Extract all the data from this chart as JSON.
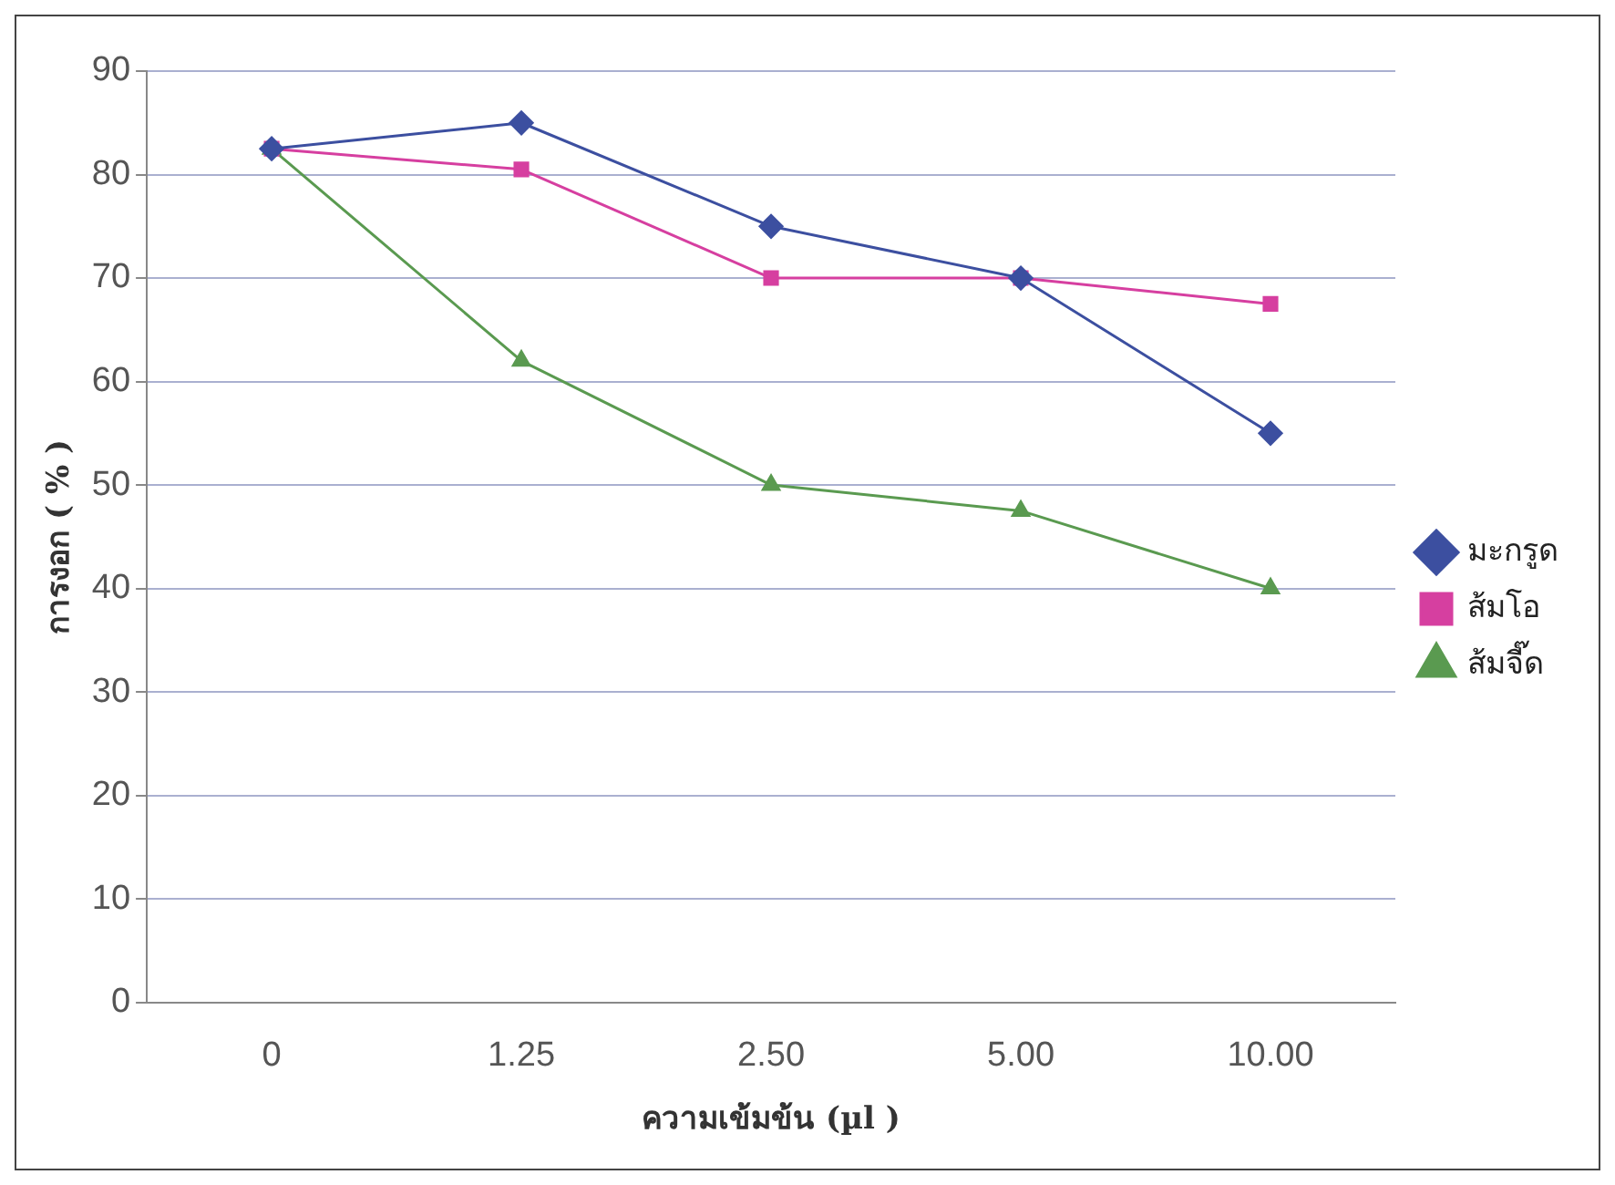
{
  "chart_data": {
    "type": "line",
    "xlabel": "ความเข้มข้น (µl )",
    "ylabel": "การงอก ( % )",
    "categories": [
      "0",
      "1.25",
      "2.50",
      "5.00",
      "10.00"
    ],
    "series": [
      {
        "name": "มะกรูด",
        "color": "#3c4fa0",
        "values": [
          82.5,
          85,
          75,
          70,
          55
        ],
        "marker": "diamond"
      },
      {
        "name": "ส้มโอ",
        "color": "#d63fa0",
        "values": [
          82.5,
          80.5,
          70,
          70,
          67.5
        ],
        "marker": "square"
      },
      {
        "name": "ส้มจี๊ด",
        "color": "#5a9a50",
        "values": [
          82.5,
          62,
          50,
          47.5,
          40
        ],
        "marker": "triangle"
      }
    ],
    "ylim": [
      0,
      90
    ],
    "yticks": [
      0,
      10,
      20,
      30,
      40,
      50,
      60,
      70,
      80,
      90
    ],
    "grid": "y",
    "legend": "right",
    "line_style": "solid"
  }
}
